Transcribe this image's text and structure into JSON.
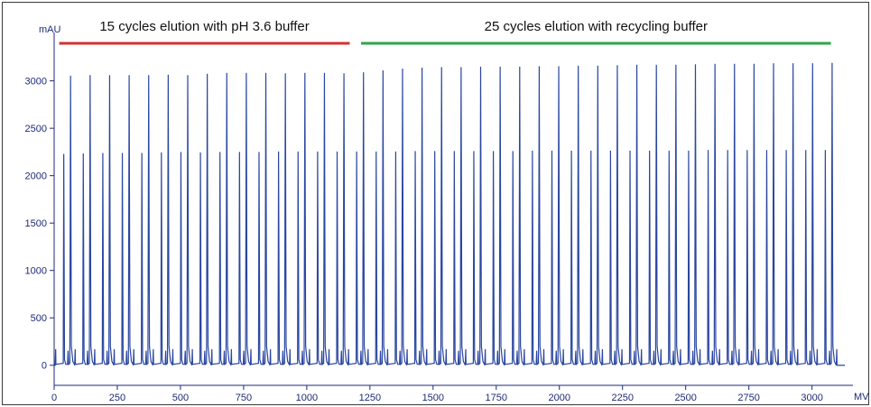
{
  "chart_data": {
    "type": "line",
    "ylabel": "mAU",
    "xlabel": "MV",
    "xlim": [
      0,
      3130
    ],
    "ylim": [
      -50,
      3320
    ],
    "x_ticks": [
      0,
      250,
      500,
      750,
      1000,
      1250,
      1500,
      1750,
      2000,
      2250,
      2500,
      2750,
      3000
    ],
    "y_ticks": [
      0,
      500,
      1000,
      1500,
      2000,
      2500,
      3000
    ],
    "grid": false,
    "line_color": "#2a46a0",
    "cycles": {
      "count": 40,
      "start_mv": 38,
      "period_mv": 77.3,
      "minor_peak_mau": [
        2230,
        2235,
        2240,
        2240,
        2240,
        2245,
        2250,
        2245,
        2250,
        2250,
        2250,
        2255,
        2255,
        2255,
        2255,
        2255,
        2255,
        2255,
        2260,
        2260,
        2260,
        2260,
        2260,
        2260,
        2265,
        2265,
        2265,
        2265,
        2265,
        2265,
        2265,
        2265,
        2265,
        2270,
        2270,
        2270,
        2270,
        2270,
        2270,
        2270
      ],
      "major_peak_mau": [
        3055,
        3060,
        3060,
        3060,
        3060,
        3065,
        3060,
        3075,
        3085,
        3085,
        3085,
        3080,
        3085,
        3085,
        3080,
        3090,
        3110,
        3130,
        3140,
        3145,
        3145,
        3150,
        3150,
        3150,
        3155,
        3155,
        3160,
        3160,
        3165,
        3170,
        3170,
        3170,
        3175,
        3180,
        3180,
        3180,
        3185,
        3185,
        3185,
        3190
      ],
      "small_peak_mau": 170
    },
    "annotations": [
      {
        "text": "15 cycles elution with pH 3.6 buffer",
        "x_start": 20,
        "x_end": 1170,
        "color": "#d63030"
      },
      {
        "text": "25 cycles elution with recycling buffer",
        "x_start": 1215,
        "x_end": 3075,
        "color": "#2fa64c"
      }
    ]
  }
}
